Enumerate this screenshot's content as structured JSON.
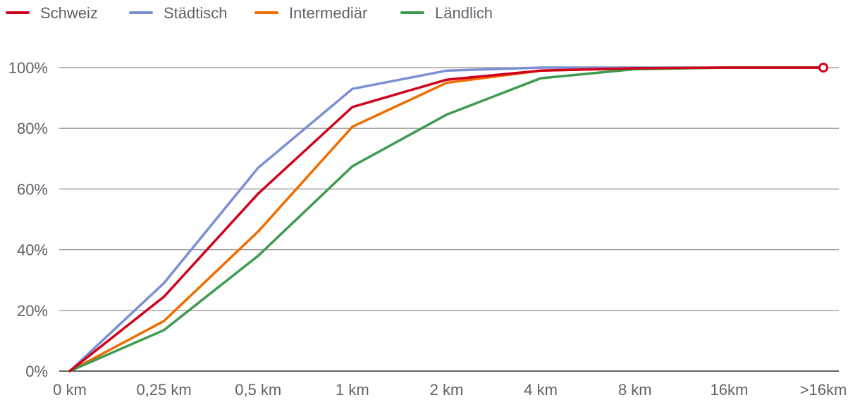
{
  "chart_data": {
    "type": "line",
    "title": "",
    "xlabel": "",
    "ylabel": "",
    "categories": [
      "0 km",
      "0,25 km",
      "0,5 km",
      "1 km",
      "2 km",
      "4 km",
      "8 km",
      "16km",
      ">16km"
    ],
    "yticks": [
      "0%",
      "20%",
      "40%",
      "60%",
      "80%",
      "100%"
    ],
    "ylim": [
      0,
      100
    ],
    "grid": true,
    "legend_position": "top-left",
    "series": [
      {
        "name": "Städtisch",
        "color": "#7b8fd4",
        "values": [
          0,
          29,
          67,
          93,
          99,
          100,
          100,
          100,
          100
        ]
      },
      {
        "name": "Intermediär",
        "color": "#ef6c00",
        "values": [
          0,
          16.5,
          46,
          80.5,
          95,
          99,
          99.7,
          100,
          100
        ]
      },
      {
        "name": "Ländlich",
        "color": "#3f9b4f",
        "values": [
          0,
          13.5,
          38,
          67.5,
          84.5,
          96.5,
          99.5,
          100,
          100
        ]
      },
      {
        "name": "Schweiz",
        "color": "#d0021b",
        "values": [
          0,
          24.5,
          58.5,
          87,
          96,
          99,
          99.8,
          100,
          100
        ]
      }
    ],
    "legend_order": [
      "Schweiz",
      "Städtisch",
      "Intermediär",
      "Ländlich"
    ],
    "end_marker_series": "Schweiz"
  }
}
